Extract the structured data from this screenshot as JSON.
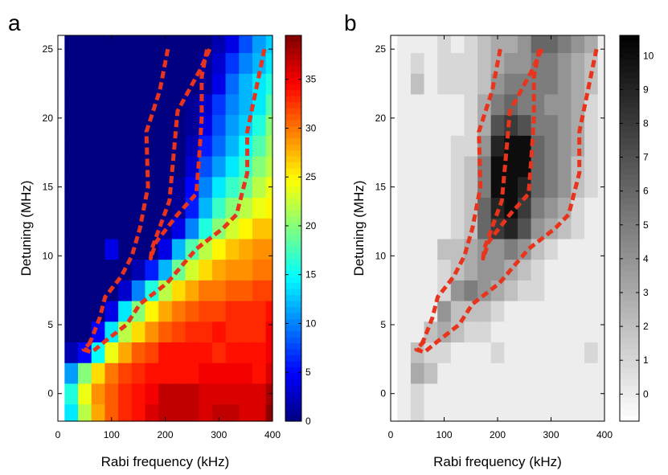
{
  "panels": [
    {
      "id": "a",
      "label": "a",
      "xlabel": "Rabi frequency (kHz)",
      "ylabel": "Detuning (MHz)",
      "colormap": "jet",
      "x_ticks": [
        "0",
        "100",
        "200",
        "300",
        "400"
      ],
      "y_ticks": [
        "0",
        "5",
        "10",
        "15",
        "20",
        "25"
      ],
      "cbar_ticks": [
        "0",
        "5",
        "10",
        "15",
        "20",
        "25",
        "30",
        "35"
      ]
    },
    {
      "id": "b",
      "label": "b",
      "xlabel": "Rabi frequency (kHz)",
      "ylabel": "Detuning (MHz)",
      "colormap": "gray_reversed",
      "x_ticks": [
        "0",
        "100",
        "200",
        "300",
        "400"
      ],
      "y_ticks": [
        "0",
        "5",
        "10",
        "15",
        "20",
        "25"
      ],
      "cbar_ticks": [
        "0",
        "1",
        "2",
        "3",
        "4",
        "5",
        "6",
        "7",
        "8",
        "9",
        "10"
      ]
    }
  ],
  "chart_data": [
    {
      "type": "heatmap",
      "panel": "a",
      "xlabel": "Rabi frequency (kHz)",
      "ylabel": "Detuning (MHz)",
      "xlim": [
        0,
        400
      ],
      "ylim": [
        -2,
        26
      ],
      "x_centers": [
        25,
        50,
        75,
        100,
        125,
        150,
        175,
        200,
        225,
        250,
        275,
        300,
        325,
        350,
        375,
        400
      ],
      "y_centers": [
        -1.5,
        0,
        1.5,
        3,
        4.5,
        6,
        7.5,
        9,
        10.5,
        12,
        13.5,
        15,
        16.5,
        18,
        19.5,
        21,
        22.5,
        24,
        25.5
      ],
      "color_range": [
        0,
        39.5
      ],
      "colorbar_ticks": [
        0,
        5,
        10,
        15,
        20,
        25,
        30,
        35
      ],
      "values": [
        [
          14,
          22,
          28,
          31,
          33,
          34,
          36,
          37,
          37,
          37,
          36,
          37,
          37,
          36,
          36,
          39
        ],
        [
          16,
          24,
          29,
          31,
          33,
          34,
          35,
          37,
          37,
          37,
          36,
          36,
          36,
          36,
          36,
          38
        ],
        [
          11,
          20,
          26,
          30,
          32,
          33,
          34,
          34,
          34,
          34,
          35,
          35,
          35,
          35,
          34,
          36
        ],
        [
          2,
          5,
          15,
          24,
          28,
          31,
          32,
          34,
          34,
          34,
          34,
          33,
          34,
          34,
          34,
          35
        ],
        [
          0,
          0,
          5,
          14,
          22,
          26,
          29,
          31,
          32,
          33,
          33,
          34,
          33,
          33,
          33,
          35
        ],
        [
          0,
          0,
          0,
          4,
          14,
          20,
          25,
          28,
          30,
          31,
          32,
          32,
          33,
          33,
          33,
          34
        ],
        [
          0,
          0,
          0,
          0,
          3,
          10,
          16,
          22,
          26,
          28,
          30,
          30,
          31,
          31,
          32,
          32
        ],
        [
          0,
          0,
          0,
          0,
          0,
          2,
          6,
          12,
          19,
          23,
          26,
          28,
          29,
          29,
          30,
          30
        ],
        [
          0,
          0,
          0,
          4,
          0,
          0,
          0,
          4,
          12,
          18,
          22,
          25,
          27,
          28,
          29,
          29
        ],
        [
          0,
          0,
          0,
          0,
          0,
          0,
          0,
          1,
          4,
          10,
          16,
          20,
          23,
          25,
          27,
          27
        ],
        [
          0,
          0,
          0,
          0,
          0,
          0,
          0,
          0,
          1,
          6,
          12,
          17,
          20,
          22,
          24,
          25
        ],
        [
          0,
          0,
          0,
          0,
          0,
          0,
          0,
          0,
          1,
          5,
          10,
          14,
          17,
          19,
          22,
          24
        ],
        [
          0,
          0,
          0,
          0,
          0,
          0,
          0,
          0,
          0,
          3,
          8,
          11,
          14,
          17,
          20,
          22
        ],
        [
          0,
          0,
          0,
          0,
          0,
          0,
          0,
          0,
          0,
          2,
          6,
          9,
          12,
          15,
          18,
          21
        ],
        [
          0,
          0,
          0,
          0,
          0,
          0,
          0,
          0,
          0,
          1,
          4,
          8,
          11,
          13,
          16,
          20
        ],
        [
          0,
          0,
          0,
          0,
          0,
          0,
          0,
          0,
          0,
          1,
          3,
          7,
          10,
          12,
          14,
          18
        ],
        [
          0,
          0,
          0,
          0,
          0,
          0,
          0,
          0,
          0,
          0,
          1,
          4,
          9,
          12,
          14,
          16
        ],
        [
          0,
          0,
          0,
          0,
          0,
          0,
          0,
          0,
          0,
          0,
          1,
          3,
          7,
          10,
          12,
          14
        ],
        [
          0,
          0,
          0,
          0,
          0,
          0,
          0,
          0,
          0,
          0,
          0,
          2,
          4,
          8,
          11,
          13
        ]
      ],
      "overlay_color": "#e8341c",
      "overlay_curves": [
        [
          [
            205,
            25
          ],
          [
            190,
            22
          ],
          [
            165,
            19
          ],
          [
            168,
            15
          ],
          [
            153,
            12
          ],
          [
            138,
            10
          ],
          [
            118,
            8.5
          ],
          [
            88,
            7
          ],
          [
            78,
            5.5
          ],
          [
            63,
            4
          ],
          [
            53,
            3.2
          ]
        ],
        [
          [
            283,
            25
          ],
          [
            265,
            23.5
          ],
          [
            223,
            20.5
          ],
          [
            215,
            17
          ],
          [
            208,
            14
          ],
          [
            175,
            10.5
          ],
          [
            173,
            9.8
          ],
          [
            183,
            11
          ],
          [
            223,
            13
          ],
          [
            258,
            14.5
          ],
          [
            263,
            17
          ],
          [
            268,
            20
          ],
          [
            268,
            23
          ],
          [
            278,
            25
          ]
        ],
        [
          [
            385,
            25
          ],
          [
            353,
            19
          ],
          [
            353,
            16
          ],
          [
            333,
            13
          ],
          [
            308,
            12
          ],
          [
            258,
            10.5
          ],
          [
            203,
            8
          ],
          [
            153,
            6.5
          ],
          [
            128,
            5
          ],
          [
            88,
            3.8
          ],
          [
            63,
            3
          ],
          [
            48,
            3.2
          ],
          [
            68,
            4
          ]
        ]
      ]
    },
    {
      "type": "heatmap",
      "panel": "b",
      "xlabel": "Rabi frequency (kHz)",
      "ylabel": "Detuning (MHz)",
      "xlim": [
        0,
        400
      ],
      "ylim": [
        -2,
        26
      ],
      "x_centers": [
        25,
        50,
        75,
        100,
        125,
        150,
        175,
        200,
        225,
        250,
        275,
        300,
        325,
        350,
        375,
        400
      ],
      "y_centers": [
        -1.5,
        0,
        1.5,
        3,
        4.5,
        6,
        7.5,
        9,
        10.5,
        12,
        13.5,
        15,
        16.5,
        18,
        19.5,
        21,
        22.5,
        24,
        25.5
      ],
      "color_range": [
        -0.8,
        10.6
      ],
      "colorbar_ticks": [
        0,
        1,
        2,
        3,
        4,
        5,
        6,
        7,
        8,
        9,
        10
      ],
      "values": [
        [
          0,
          1,
          0,
          0,
          0,
          0,
          0,
          0,
          0,
          0,
          0,
          0,
          0,
          0,
          0,
          0
        ],
        [
          0,
          1,
          0,
          0,
          0,
          0,
          0,
          0,
          0,
          0,
          0,
          0,
          0,
          0,
          0,
          0
        ],
        [
          0,
          3,
          2,
          0,
          0,
          0,
          0,
          0,
          0,
          0,
          0,
          0,
          0,
          0,
          0,
          0
        ],
        [
          0,
          2,
          1,
          1,
          0,
          0,
          0,
          1,
          0,
          0,
          0,
          0,
          0,
          0,
          1,
          0
        ],
        [
          0,
          0,
          2,
          3,
          2,
          1,
          1,
          0,
          0,
          0,
          0,
          0,
          0,
          0,
          0,
          0
        ],
        [
          0,
          0,
          0,
          4,
          2,
          2,
          2,
          1,
          0,
          0,
          0,
          0,
          0,
          0,
          0,
          0
        ],
        [
          0,
          0,
          0,
          1,
          4,
          5,
          4,
          3,
          2,
          1,
          1,
          0,
          0,
          0,
          0,
          0
        ],
        [
          0,
          0,
          0,
          1,
          2,
          3,
          4,
          4,
          3,
          2,
          1,
          0,
          0,
          0,
          0,
          0
        ],
        [
          0,
          0,
          0,
          2,
          2,
          3,
          4,
          4,
          5,
          4,
          2,
          1,
          0,
          0,
          0,
          0
        ],
        [
          0,
          0,
          0,
          0,
          1,
          2,
          6,
          8,
          9,
          7,
          4,
          3,
          2,
          1,
          0,
          0
        ],
        [
          0,
          0,
          0,
          0,
          1,
          2,
          6,
          9,
          10,
          8,
          5,
          4,
          3,
          1,
          0,
          0
        ],
        [
          0,
          0,
          0,
          0,
          1,
          2,
          5,
          10,
          10,
          9,
          6,
          5,
          4,
          2,
          1,
          0
        ],
        [
          0,
          0,
          0,
          0,
          1,
          2,
          5,
          10,
          10,
          10,
          6,
          5,
          4,
          2,
          1,
          0
        ],
        [
          0,
          0,
          0,
          0,
          1,
          1,
          4,
          9,
          10,
          10,
          6,
          5,
          4,
          3,
          1,
          0
        ],
        [
          0,
          0,
          0,
          0,
          0,
          1,
          3,
          7,
          8,
          7,
          5,
          5,
          4,
          3,
          1,
          0
        ],
        [
          0,
          0,
          0,
          0,
          0,
          1,
          3,
          5,
          6,
          5,
          5,
          4,
          4,
          3,
          1,
          0
        ],
        [
          0,
          2,
          0,
          1,
          1,
          1,
          2,
          4,
          5,
          5,
          5,
          5,
          4,
          3,
          2,
          0
        ],
        [
          0,
          1,
          0,
          1,
          1,
          1,
          2,
          3,
          4,
          4,
          5,
          5,
          4,
          3,
          2,
          0
        ],
        [
          0,
          0,
          0,
          1,
          0,
          1,
          2,
          3,
          3,
          4,
          6,
          6,
          5,
          4,
          3,
          0
        ]
      ],
      "overlay_color": "#e8341c",
      "overlay_curves": [
        [
          [
            205,
            25
          ],
          [
            190,
            22
          ],
          [
            165,
            19
          ],
          [
            168,
            15
          ],
          [
            153,
            12
          ],
          [
            138,
            10
          ],
          [
            118,
            8.5
          ],
          [
            88,
            7
          ],
          [
            78,
            5.5
          ],
          [
            63,
            4
          ],
          [
            53,
            3.2
          ]
        ],
        [
          [
            283,
            25
          ],
          [
            265,
            23.5
          ],
          [
            223,
            20.5
          ],
          [
            215,
            17
          ],
          [
            208,
            14
          ],
          [
            175,
            10.5
          ],
          [
            173,
            9.8
          ],
          [
            183,
            11
          ],
          [
            223,
            13
          ],
          [
            258,
            14.5
          ],
          [
            263,
            17
          ],
          [
            268,
            20
          ],
          [
            268,
            23
          ],
          [
            278,
            25
          ]
        ],
        [
          [
            385,
            25
          ],
          [
            353,
            19
          ],
          [
            353,
            16
          ],
          [
            333,
            13
          ],
          [
            308,
            12
          ],
          [
            258,
            10.5
          ],
          [
            203,
            8
          ],
          [
            153,
            6.5
          ],
          [
            128,
            5
          ],
          [
            88,
            3.8
          ],
          [
            63,
            3
          ],
          [
            48,
            3.2
          ],
          [
            68,
            4
          ]
        ]
      ]
    }
  ]
}
